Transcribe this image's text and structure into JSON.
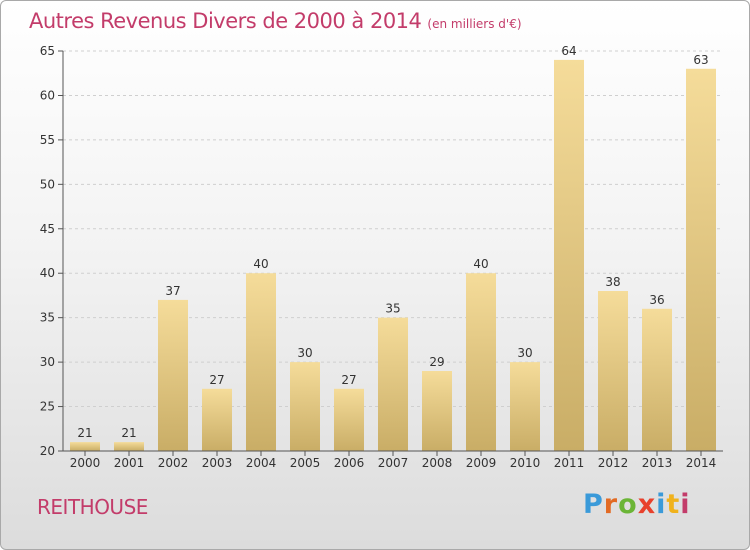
{
  "header": {
    "title": "Autres Revenus Divers de 2000 à 2014",
    "unit": "(en milliers d'€)"
  },
  "footer": {
    "place": "REITHOUSE",
    "logo_letters": [
      "P",
      "r",
      "o",
      "x",
      "i",
      "t",
      "i"
    ]
  },
  "colors": {
    "title": "#c33c6a",
    "bar_light": "#f5dc9a",
    "bar_dark": "#c9ad66",
    "grid": "#cfcfcf",
    "axis": "#555555"
  },
  "chart_data": {
    "type": "bar",
    "title": "Autres Revenus Divers de 2000 à 2014",
    "subtitle": "(en milliers d'€)",
    "xlabel": "",
    "ylabel": "",
    "categories": [
      "2000",
      "2001",
      "2002",
      "2003",
      "2004",
      "2005",
      "2006",
      "2007",
      "2008",
      "2009",
      "2010",
      "2011",
      "2012",
      "2013",
      "2014"
    ],
    "values": [
      21,
      21,
      37,
      27,
      40,
      30,
      27,
      35,
      29,
      40,
      30,
      64,
      38,
      36,
      63
    ],
    "ylim": [
      20,
      65
    ],
    "yticks": [
      20,
      25,
      30,
      35,
      40,
      45,
      50,
      55,
      60,
      65
    ],
    "grid": "horizontal",
    "legend": "none"
  }
}
